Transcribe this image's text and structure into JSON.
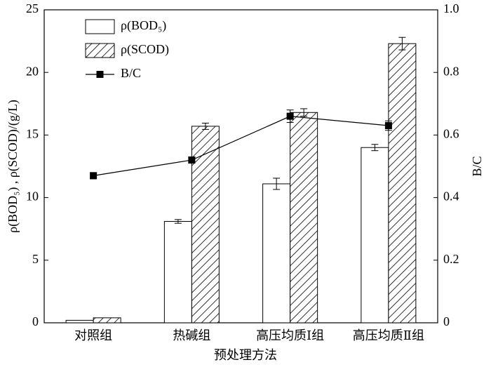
{
  "chart_data": {
    "type": "bar",
    "categories": [
      "对照组",
      "热碱组",
      "高压均质Ⅰ组",
      "高压均质Ⅱ组"
    ],
    "x_label": "预处理方法",
    "y_label": "ρ(BOD₅) , ρ(SCOD)/(g/L)",
    "y2_label": "B/C",
    "ylim": [
      0,
      25
    ],
    "yticks": [
      0,
      5,
      10,
      15,
      20,
      25
    ],
    "y2lim": [
      0,
      1
    ],
    "y2ticks": [
      0,
      0.2,
      0.4,
      0.6,
      0.8,
      {
        "value": 1,
        "label": "1.0"
      }
    ],
    "legend": "upper left",
    "series": [
      {
        "name": "ρ(BOD₅)",
        "type": "bar",
        "color": "#ffffff",
        "values": [
          0.2,
          8.1,
          11.1,
          14.0
        ],
        "errors": [
          0,
          0.15,
          0.45,
          0.25
        ]
      },
      {
        "name": "ρ(SCOD)",
        "type": "bar",
        "color": "#ffffff",
        "hatch": true,
        "values": [
          0.4,
          15.7,
          16.8,
          22.3
        ],
        "errors": [
          0,
          0.25,
          0.3,
          0.5
        ]
      },
      {
        "name": "B/C",
        "type": "line",
        "axis": "y2",
        "color": "#000000",
        "values": [
          0.47,
          0.52,
          0.66,
          0.63
        ],
        "errors": [
          0.01,
          0.01,
          0.02,
          0.015
        ]
      }
    ]
  }
}
